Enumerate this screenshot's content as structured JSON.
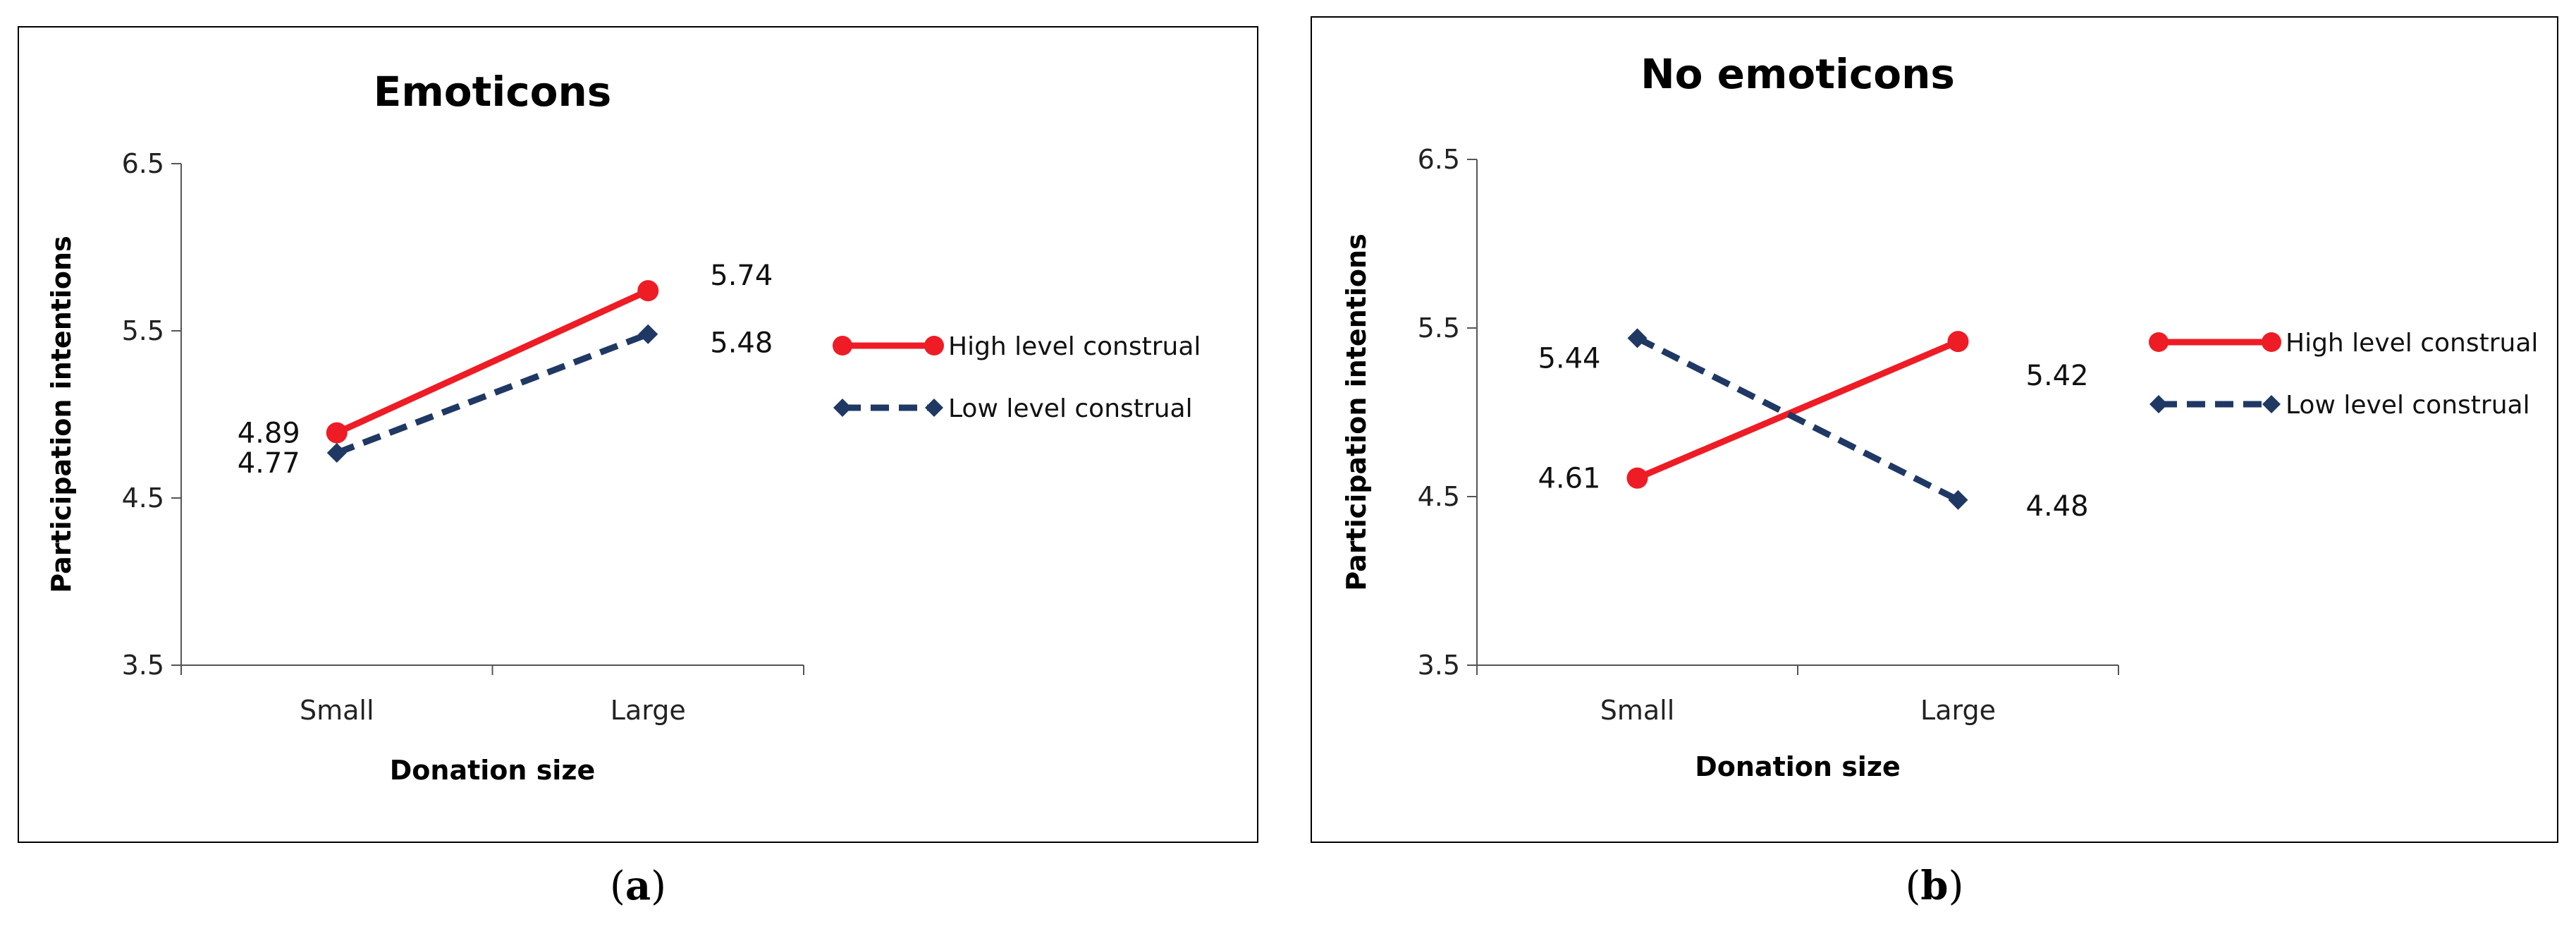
{
  "chart_data": [
    {
      "type": "line",
      "panel_caption": "a",
      "title": "Emoticons",
      "xlabel": "Donation size",
      "ylabel": "Participation intentions",
      "categories": [
        "Small",
        "Large"
      ],
      "ylim": [
        3.5,
        6.5
      ],
      "yticks": [
        "3.5",
        "4.5",
        "5.5",
        "6.5"
      ],
      "series": [
        {
          "name": "High level construal",
          "values": [
            4.89,
            5.74
          ],
          "labels": [
            "4.89",
            "5.74"
          ],
          "color": "#ee1c25",
          "dash": "solid",
          "marker": "circle"
        },
        {
          "name": "Low level construal",
          "values": [
            4.77,
            5.48
          ],
          "labels": [
            "4.77",
            "5.48"
          ],
          "color": "#1f3864",
          "dash": "dashed",
          "marker": "diamond"
        }
      ]
    },
    {
      "type": "line",
      "panel_caption": "b",
      "title": "No emoticons",
      "xlabel": "Donation size",
      "ylabel": "Participation intentions",
      "categories": [
        "Small",
        "Large"
      ],
      "ylim": [
        3.5,
        6.5
      ],
      "yticks": [
        "3.5",
        "4.5",
        "5.5",
        "6.5"
      ],
      "series": [
        {
          "name": "High level construal",
          "values": [
            4.61,
            5.42
          ],
          "labels": [
            "4.61",
            "5.42"
          ],
          "color": "#ee1c25",
          "dash": "solid",
          "marker": "circle"
        },
        {
          "name": "Low level construal",
          "values": [
            5.44,
            4.48
          ],
          "labels": [
            "5.44",
            "4.48"
          ],
          "color": "#1f3864",
          "dash": "dashed",
          "marker": "diamond"
        }
      ]
    }
  ]
}
